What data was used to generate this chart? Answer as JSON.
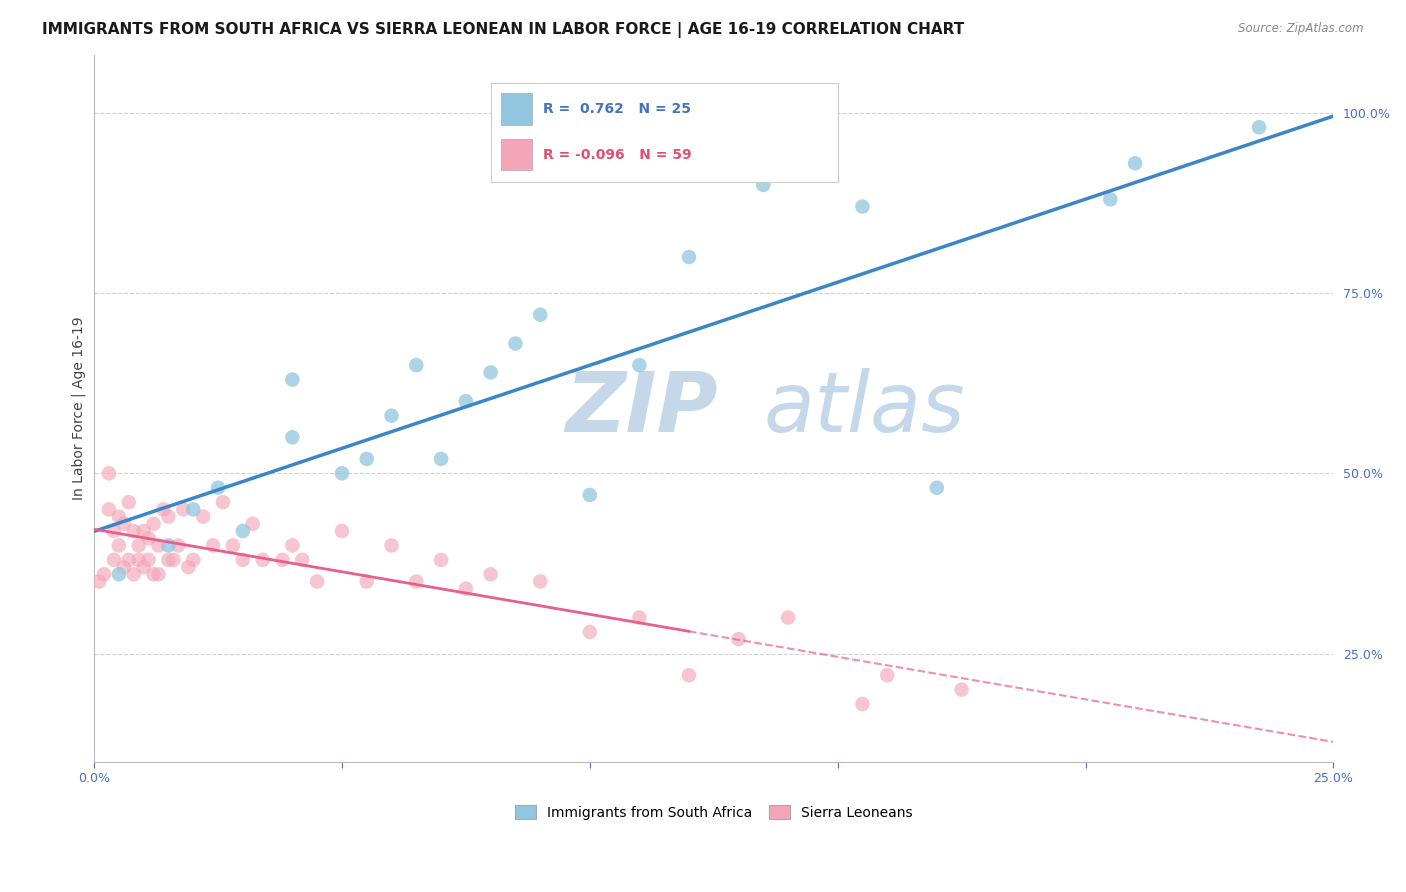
{
  "title": "IMMIGRANTS FROM SOUTH AFRICA VS SIERRA LEONEAN IN LABOR FORCE | AGE 16-19 CORRELATION CHART",
  "source": "Source: ZipAtlas.com",
  "ylabel": "In Labor Force | Age 16-19",
  "xlabel": "",
  "xlim": [
    0.0,
    0.25
  ],
  "ylim": [
    0.1,
    1.08
  ],
  "xticks": [
    0.0,
    0.05,
    0.1,
    0.15,
    0.2,
    0.25
  ],
  "xticklabels": [
    "0.0%",
    "",
    "",
    "",
    "",
    "25.0%"
  ],
  "yticks": [
    0.25,
    0.5,
    0.75,
    1.0
  ],
  "yticklabels": [
    "25.0%",
    "50.0%",
    "75.0%",
    "100.0%"
  ],
  "R_blue": 0.762,
  "N_blue": 25,
  "R_pink": -0.096,
  "N_pink": 59,
  "blue_color": "#92c5de",
  "pink_color": "#f4a6b8",
  "blue_line_color": "#3a86c8",
  "pink_line_color": "#e8608a",
  "pink_line_solid_end": 0.12,
  "watermark_zip_color": "#c5d8ea",
  "watermark_atlas_color": "#c5d8ea",
  "grid_color": "#cccccc",
  "background_color": "#ffffff",
  "title_fontsize": 11,
  "axis_label_fontsize": 10,
  "tick_fontsize": 9,
  "blue_scatter_x": [
    0.005,
    0.015,
    0.02,
    0.025,
    0.03,
    0.04,
    0.04,
    0.05,
    0.055,
    0.06,
    0.065,
    0.07,
    0.075,
    0.08,
    0.085,
    0.09,
    0.1,
    0.11,
    0.12,
    0.135,
    0.155,
    0.17,
    0.205,
    0.21,
    0.235
  ],
  "blue_scatter_y": [
    0.36,
    0.4,
    0.45,
    0.48,
    0.42,
    0.55,
    0.63,
    0.5,
    0.52,
    0.58,
    0.65,
    0.52,
    0.6,
    0.64,
    0.68,
    0.72,
    0.47,
    0.65,
    0.8,
    0.9,
    0.87,
    0.48,
    0.88,
    0.93,
    0.98
  ],
  "pink_scatter_x": [
    0.001,
    0.002,
    0.003,
    0.003,
    0.004,
    0.004,
    0.005,
    0.005,
    0.006,
    0.006,
    0.007,
    0.007,
    0.008,
    0.008,
    0.009,
    0.009,
    0.01,
    0.01,
    0.011,
    0.011,
    0.012,
    0.012,
    0.013,
    0.013,
    0.014,
    0.015,
    0.015,
    0.016,
    0.017,
    0.018,
    0.019,
    0.02,
    0.022,
    0.024,
    0.026,
    0.028,
    0.03,
    0.032,
    0.034,
    0.038,
    0.04,
    0.042,
    0.045,
    0.05,
    0.055,
    0.06,
    0.065,
    0.07,
    0.075,
    0.08,
    0.09,
    0.1,
    0.11,
    0.12,
    0.13,
    0.14,
    0.155,
    0.16,
    0.175
  ],
  "pink_scatter_y": [
    0.35,
    0.36,
    0.45,
    0.5,
    0.38,
    0.42,
    0.4,
    0.44,
    0.37,
    0.43,
    0.38,
    0.46,
    0.36,
    0.42,
    0.38,
    0.4,
    0.37,
    0.42,
    0.38,
    0.41,
    0.36,
    0.43,
    0.4,
    0.36,
    0.45,
    0.38,
    0.44,
    0.38,
    0.4,
    0.45,
    0.37,
    0.38,
    0.44,
    0.4,
    0.46,
    0.4,
    0.38,
    0.43,
    0.38,
    0.38,
    0.4,
    0.38,
    0.35,
    0.42,
    0.35,
    0.4,
    0.35,
    0.38,
    0.34,
    0.36,
    0.35,
    0.28,
    0.3,
    0.22,
    0.27,
    0.3,
    0.18,
    0.22,
    0.2
  ]
}
